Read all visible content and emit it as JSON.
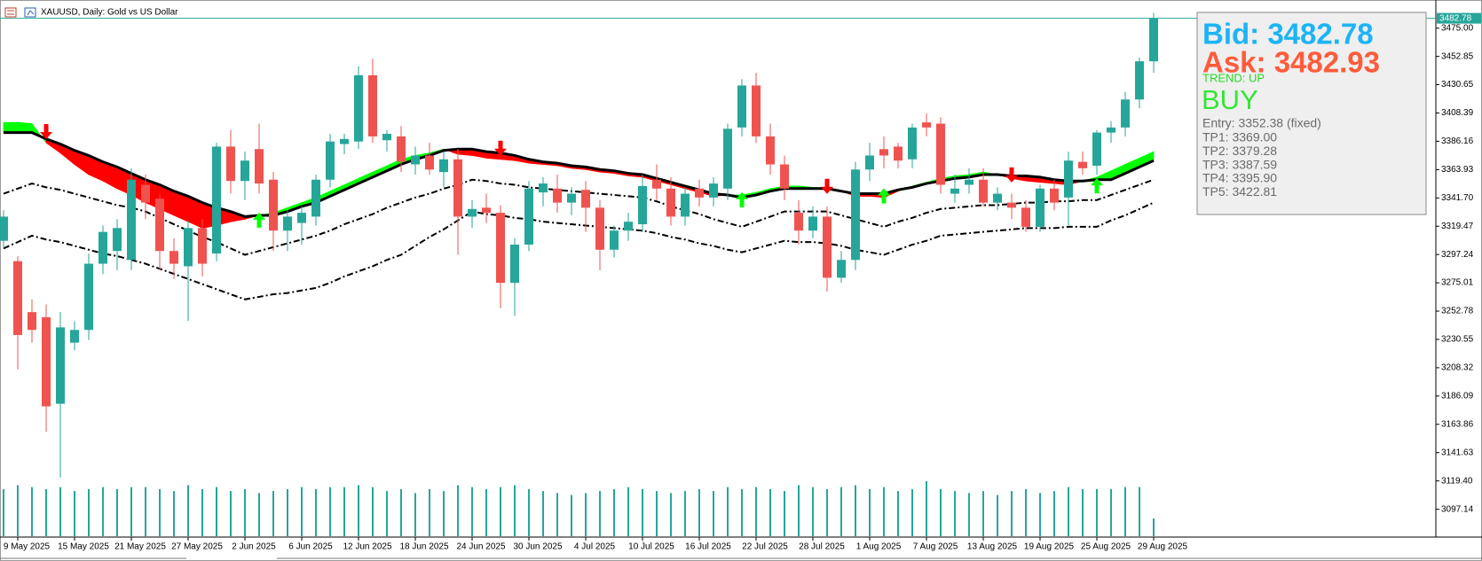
{
  "chart_data": {
    "type": "candlestick",
    "title": "XAUUSD, Daily: Gold vs US Dollar",
    "ylim": [
      3076,
      3486
    ],
    "yticks": [
      {
        "value": 3475,
        "label": "3475.00"
      },
      3452.85,
      3430.65,
      3408.39,
      3386.16,
      3363.93,
      {
        "value": 3341.7,
        "label": "3341.70"
      },
      3319.47,
      3297.24,
      3275.01,
      3252.78,
      3230.55,
      3208.32,
      3186.09,
      3163.86,
      3141.63,
      {
        "value": 3119.4,
        "label": "3119.40"
      },
      3097.14
    ],
    "bid_line": 3482.78,
    "up_color": "#26a69a",
    "down_color": "#ef5350",
    "categories": [
      null,
      "9 May 2025",
      null,
      null,
      null,
      "15 May 2025",
      null,
      null,
      null,
      "21 May 2025",
      null,
      null,
      null,
      "27 May 2025",
      null,
      null,
      null,
      "2 Jun 2025",
      null,
      null,
      null,
      "6 Jun 2025",
      null,
      null,
      null,
      "12 Jun 2025",
      null,
      null,
      null,
      "18 Jun 2025",
      null,
      null,
      null,
      "24 Jun 2025",
      null,
      null,
      null,
      "30 Jun 2025",
      null,
      null,
      null,
      "4 Jul 2025",
      null,
      null,
      null,
      "10 Jul 2025",
      null,
      null,
      null,
      "16 Jul 2025",
      null,
      null,
      null,
      "22 Jul 2025",
      null,
      null,
      null,
      "28 Jul 2025",
      null,
      null,
      null,
      "1 Aug 2025",
      null,
      null,
      null,
      "7 Aug 2025",
      null,
      null,
      null,
      "13 Aug 2025",
      null,
      null,
      null,
      "19 Aug 2025",
      null,
      null,
      null,
      "25 Aug 2025",
      null,
      null,
      null,
      "29 Aug 2025"
    ],
    "open": [
      3308,
      3292,
      3252,
      3248,
      3180,
      3228,
      3238,
      3290,
      3300,
      3293,
      3352,
      3341,
      3300,
      3288,
      3318,
      3298,
      3382,
      3355,
      3380,
      3356,
      3316,
      3322,
      3327,
      3356,
      3384,
      3386,
      3438,
      3387,
      3390,
      3368,
      3375,
      3362,
      3372,
      3327,
      3334,
      3330,
      3275,
      3305,
      3346,
      3349,
      3338,
      3348,
      3334,
      3301,
      3316,
      3321,
      3356,
      3349,
      3327,
      3349,
      3342,
      3349,
      3397,
      3430,
      3390,
      3368,
      3330,
      3316,
      3327,
      3279,
      3293,
      3364,
      3380,
      3382,
      3372,
      3401,
      3400,
      3345,
      3352,
      3356,
      3338,
      3338,
      3334,
      3319,
      3349,
      3342,
      3370,
      3367,
      3393,
      3397,
      3419,
      3449
    ],
    "high": [
      3332,
      3296,
      3262,
      3258,
      3252,
      3245,
      3298,
      3320,
      3325,
      3365,
      3360,
      3345,
      3310,
      3324,
      3325,
      3385,
      3395,
      3378,
      3400,
      3362,
      3332,
      3335,
      3360,
      3392,
      3392,
      3445,
      3451,
      3395,
      3398,
      3382,
      3385,
      3378,
      3380,
      3340,
      3345,
      3336,
      3310,
      3355,
      3358,
      3360,
      3350,
      3355,
      3340,
      3320,
      3330,
      3360,
      3368,
      3358,
      3350,
      3356,
      3358,
      3400,
      3435,
      3440,
      3400,
      3375,
      3340,
      3335,
      3335,
      3300,
      3370,
      3385,
      3390,
      3385,
      3400,
      3408,
      3405,
      3360,
      3365,
      3365,
      3350,
      3345,
      3340,
      3352,
      3356,
      3378,
      3378,
      3395,
      3402,
      3425,
      3452,
      3487
    ],
    "low": [
      3303,
      3207,
      3228,
      3158,
      3122,
      3222,
      3230,
      3282,
      3285,
      3285,
      3325,
      3285,
      3278,
      3245,
      3280,
      3292,
      3345,
      3340,
      3345,
      3300,
      3300,
      3305,
      3320,
      3350,
      3376,
      3380,
      3385,
      3378,
      3362,
      3360,
      3360,
      3350,
      3297,
      3318,
      3322,
      3255,
      3249,
      3300,
      3335,
      3330,
      3328,
      3315,
      3285,
      3295,
      3308,
      3315,
      3340,
      3320,
      3320,
      3335,
      3335,
      3340,
      3390,
      3385,
      3360,
      3340,
      3305,
      3310,
      3268,
      3275,
      3285,
      3355,
      3365,
      3365,
      3365,
      3390,
      3345,
      3338,
      3345,
      3335,
      3332,
      3325,
      3315,
      3315,
      3332,
      3320,
      3360,
      3360,
      3385,
      3390,
      3412,
      3440
    ],
    "close": [
      3327,
      3234,
      3238,
      3178,
      3240,
      3238,
      3290,
      3315,
      3318,
      3356,
      3338,
      3300,
      3290,
      3318,
      3290,
      3382,
      3355,
      3371,
      3353,
      3316,
      3327,
      3330,
      3356,
      3386,
      3388,
      3438,
      3390,
      3392,
      3370,
      3375,
      3364,
      3372,
      3327,
      3333,
      3330,
      3275,
      3305,
      3349,
      3353,
      3338,
      3345,
      3334,
      3301,
      3316,
      3323,
      3351,
      3349,
      3327,
      3345,
      3342,
      3353,
      3396,
      3430,
      3390,
      3368,
      3349,
      3316,
      3327,
      3279,
      3293,
      3364,
      3375,
      3375,
      3371,
      3397,
      3397,
      3352,
      3349,
      3356,
      3338,
      3345,
      3334,
      3319,
      3349,
      3338,
      3371,
      3365,
      3393,
      3397,
      3419,
      3449,
      3482.78
    ],
    "volume": {
      "color": "#26a69a",
      "values": [
        48,
        52,
        50,
        48,
        50,
        46,
        48,
        50,
        48,
        50,
        50,
        48,
        46,
        52,
        48,
        50,
        46,
        48,
        44,
        46,
        48,
        50,
        48,
        50,
        50,
        52,
        50,
        46,
        48,
        44,
        48,
        46,
        52,
        50,
        48,
        50,
        52,
        48,
        46,
        44,
        42,
        44,
        46,
        48,
        50,
        48,
        46,
        44,
        46,
        48,
        46,
        50,
        48,
        50,
        48,
        46,
        52,
        50,
        48,
        50,
        52,
        48,
        50,
        46,
        48,
        56,
        48,
        46,
        44,
        46,
        42,
        46,
        48,
        44,
        46,
        50,
        48,
        48,
        48,
        50,
        50,
        18
      ]
    },
    "ribbon": {
      "up_color": "#00ff00",
      "down_color": "#ff0000",
      "values": [
        3401,
        3401,
        3400,
        3385,
        3377,
        3368,
        3360,
        3355,
        3349,
        3344,
        3338,
        3333,
        3328,
        3323,
        3318,
        3320,
        3323,
        3325,
        3328,
        3330,
        3334,
        3338,
        3342,
        3347,
        3352,
        3357,
        3362,
        3367,
        3372,
        3375,
        3377,
        3380,
        3376,
        3375,
        3373,
        3372,
        3371,
        3369,
        3368,
        3367,
        3365,
        3364,
        3362,
        3361,
        3359,
        3358,
        3355,
        3352,
        3349,
        3346,
        3343,
        3344,
        3344,
        3346,
        3349,
        3351,
        3351,
        3350,
        3350,
        3347,
        3343,
        3343,
        3342,
        3347,
        3351,
        3354,
        3357,
        3359,
        3360,
        3362,
        3360,
        3357,
        3355,
        3354,
        3353,
        3352,
        3355,
        3358,
        3363,
        3368,
        3373,
        3378
      ]
    },
    "series": [
      {
        "color": "#000000",
        "style": "solid",
        "values": [
          3393,
          3393,
          3393,
          3388,
          3384,
          3379,
          3375,
          3370,
          3366,
          3361,
          3356,
          3352,
          3347,
          3343,
          3338,
          3334,
          3331,
          3327,
          3328,
          3328,
          3331,
          3335,
          3338,
          3343,
          3348,
          3353,
          3358,
          3363,
          3368,
          3372,
          3375,
          3379,
          3380,
          3380,
          3378,
          3377,
          3375,
          3372,
          3370,
          3369,
          3367,
          3366,
          3364,
          3363,
          3361,
          3360,
          3357,
          3354,
          3351,
          3348,
          3345,
          3344,
          3342,
          3344,
          3347,
          3349,
          3349,
          3349,
          3349,
          3347,
          3345,
          3345,
          3345,
          3348,
          3350,
          3353,
          3355,
          3357,
          3358,
          3360,
          3360,
          3359,
          3359,
          3358,
          3356,
          3355,
          3355,
          3356,
          3356,
          3361,
          3366,
          3371
        ]
      },
      {
        "color": "#000000",
        "style": "dashdot",
        "values": [
          3345,
          3349,
          3353,
          3350,
          3348,
          3345,
          3342,
          3339,
          3336,
          3334,
          3331,
          3326,
          3321,
          3316,
          3311,
          3307,
          3302,
          3297,
          3300,
          3303,
          3306,
          3309,
          3312,
          3316,
          3321,
          3325,
          3329,
          3334,
          3338,
          3342,
          3345,
          3349,
          3352,
          3356,
          3355,
          3353,
          3352,
          3350,
          3349,
          3348,
          3347,
          3346,
          3345,
          3344,
          3343,
          3342,
          3339,
          3335,
          3332,
          3329,
          3325,
          3322,
          3319,
          3323,
          3327,
          3331,
          3331,
          3331,
          3331,
          3328,
          3325,
          3322,
          3319,
          3323,
          3326,
          3330,
          3333,
          3334,
          3335,
          3336,
          3336,
          3337,
          3338,
          3338,
          3339,
          3339,
          3340,
          3340,
          3344,
          3348,
          3352,
          3356
        ]
      },
      {
        "color": "#000000",
        "style": "dashdot",
        "values": [
          3302,
          3307,
          3312,
          3309,
          3307,
          3304,
          3301,
          3298,
          3296,
          3293,
          3290,
          3286,
          3282,
          3278,
          3274,
          3270,
          3266,
          3262,
          3264,
          3266,
          3267,
          3269,
          3271,
          3275,
          3280,
          3284,
          3288,
          3293,
          3297,
          3304,
          3311,
          3317,
          3324,
          3331,
          3329,
          3328,
          3326,
          3325,
          3323,
          3322,
          3321,
          3320,
          3319,
          3318,
          3317,
          3316,
          3314,
          3311,
          3309,
          3306,
          3304,
          3301,
          3299,
          3302,
          3305,
          3308,
          3307,
          3307,
          3306,
          3304,
          3301,
          3299,
          3297,
          3301,
          3305,
          3308,
          3312,
          3313,
          3314,
          3315,
          3316,
          3317,
          3318,
          3318,
          3318,
          3319,
          3319,
          3319,
          3324,
          3328,
          3333,
          3338
        ]
      }
    ],
    "buy_signals": {
      "color": "#00ff00",
      "values": [
        null,
        null,
        null,
        null,
        null,
        null,
        null,
        null,
        null,
        null,
        null,
        null,
        null,
        null,
        null,
        null,
        null,
        null,
        3326,
        null,
        null,
        null,
        null,
        null,
        null,
        null,
        null,
        null,
        null,
        null,
        null,
        null,
        null,
        null,
        null,
        null,
        null,
        null,
        null,
        null,
        null,
        null,
        null,
        null,
        null,
        null,
        null,
        null,
        null,
        null,
        null,
        null,
        3342,
        null,
        null,
        null,
        null,
        null,
        null,
        null,
        null,
        null,
        3345,
        null,
        null,
        null,
        null,
        null,
        null,
        null,
        null,
        null,
        null,
        null,
        null,
        null,
        null,
        3353,
        null,
        null,
        null,
        null
      ]
    },
    "sell_signals": {
      "color": "#ff0000",
      "values": [
        null,
        null,
        null,
        3392,
        null,
        null,
        null,
        null,
        null,
        null,
        null,
        null,
        null,
        null,
        null,
        null,
        null,
        null,
        null,
        null,
        null,
        null,
        null,
        null,
        null,
        null,
        null,
        null,
        null,
        null,
        null,
        null,
        null,
        null,
        null,
        3379,
        null,
        null,
        null,
        null,
        null,
        null,
        null,
        null,
        null,
        null,
        null,
        null,
        null,
        null,
        null,
        null,
        null,
        null,
        null,
        null,
        null,
        null,
        3349,
        null,
        null,
        null,
        null,
        null,
        null,
        null,
        null,
        null,
        null,
        null,
        null,
        3358,
        null,
        null,
        null,
        null,
        null,
        null,
        null,
        null,
        null,
        null
      ]
    },
    "panel": {
      "bid": "Bid: 3482.78",
      "ask": "Ask: 3482.93",
      "trend": "TREND: UP",
      "signal": "BUY",
      "entry": "Entry: 3352.38 (fixed)",
      "targets": [
        "TP1: 3369.00",
        "TP2: 3379.28",
        "TP3: 3387.59",
        "TP4: 3395.90",
        "TP5: 3422.81"
      ]
    }
  }
}
